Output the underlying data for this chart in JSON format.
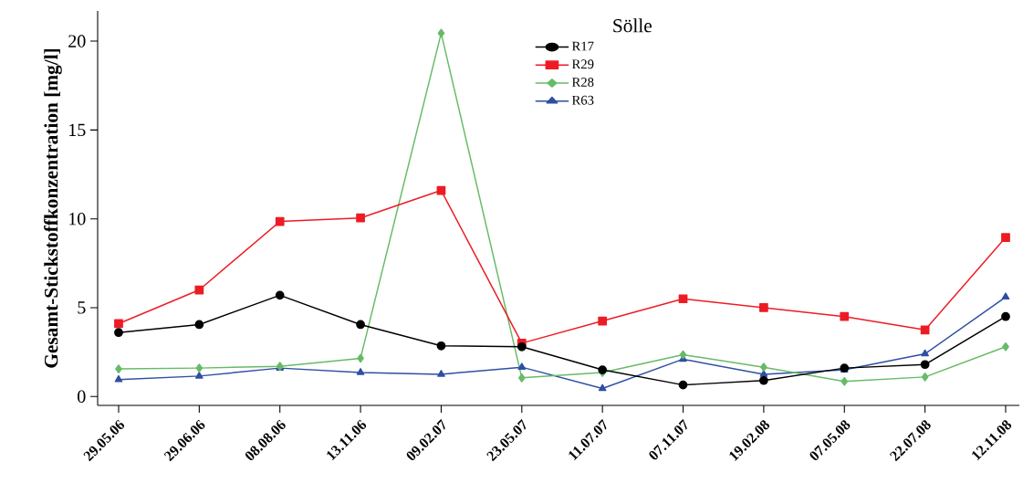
{
  "chart_data": {
    "type": "line",
    "ylabel": "Gesamt-Stickstoffkonzentration [mg/l]",
    "legend_title": "Sölle",
    "legend": "top",
    "categories": [
      "29.05.06",
      "29.06.06",
      "08.08.06",
      "13.11.06",
      "09.02.07",
      "23.05.07",
      "11.07.07",
      "07.11.07",
      "19.02.08",
      "07.05.08",
      "22.07.08",
      "12.11.08"
    ],
    "ylim": [
      -0.5,
      21.7
    ],
    "yticks": [
      0,
      5,
      10,
      15,
      20
    ],
    "grid": false,
    "line_style": "solid",
    "series": [
      {
        "name": "R17",
        "color": "#000000",
        "marker": "circle",
        "values": [
          3.6,
          4.05,
          5.7,
          4.05,
          2.85,
          2.8,
          1.5,
          0.65,
          0.9,
          1.6,
          1.8,
          4.5
        ]
      },
      {
        "name": "R29",
        "color": "#ed1c24",
        "marker": "square",
        "values": [
          4.1,
          6.0,
          9.85,
          10.05,
          11.6,
          3.0,
          4.25,
          5.5,
          5.0,
          4.5,
          3.75,
          8.95
        ]
      },
      {
        "name": "R28",
        "color": "#66bb66",
        "marker": "diamond",
        "values": [
          1.55,
          1.6,
          1.7,
          2.15,
          20.45,
          1.05,
          1.35,
          2.35,
          1.65,
          0.85,
          1.1,
          2.8
        ]
      },
      {
        "name": "R63",
        "color": "#2e4fa3",
        "marker": "triangle",
        "values": [
          0.95,
          1.15,
          1.6,
          1.35,
          1.25,
          1.65,
          0.45,
          2.1,
          1.25,
          1.5,
          2.4,
          5.6
        ]
      }
    ]
  }
}
